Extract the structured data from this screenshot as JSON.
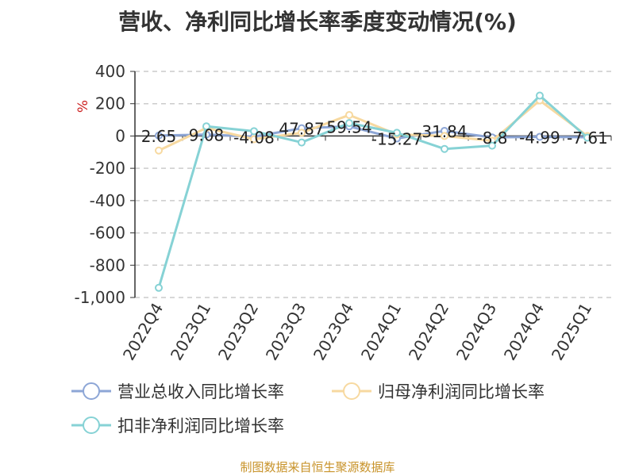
{
  "title": "营收、净利同比增长率季度变动情况(%)",
  "source": "制图数据来自恒生聚源数据库",
  "y_unit": "%",
  "chart_data": {
    "type": "line",
    "categories": [
      "2022Q4",
      "2023Q1",
      "2023Q2",
      "2023Q3",
      "2023Q4",
      "2024Q1",
      "2024Q2",
      "2024Q3",
      "2024Q4",
      "2025Q1"
    ],
    "ylim": [
      -1000,
      400
    ],
    "yticks": [
      400,
      200,
      0,
      -200,
      -400,
      -600,
      -800,
      -1000
    ],
    "ytick_labels": [
      "400",
      "200",
      "0",
      "-200",
      "-400",
      "-600",
      "-800",
      "-1,000"
    ],
    "grid": true,
    "legend_position": "bottom",
    "series": [
      {
        "name": "营业总收入同比增长率",
        "color": "#8da6d6",
        "values": [
          2.65,
          9.08,
          -4.08,
          47.87,
          59.54,
          -15.27,
          31.84,
          -8.8,
          -4.99,
          -7.61
        ],
        "labels": [
          "2.65",
          "9.08",
          "-4.08",
          "47.87",
          "59.54",
          "-15.27",
          "31.84",
          "-8.8",
          "-4.99",
          "-7.61"
        ]
      },
      {
        "name": "归母净利润同比增长率",
        "color": "#f7d9a0",
        "values": [
          -90,
          50,
          -20,
          20,
          130,
          10,
          0,
          -30,
          220,
          0
        ]
      },
      {
        "name": "扣非净利润同比增长率",
        "color": "#86d2d5",
        "values": [
          -940,
          60,
          30,
          -40,
          80,
          20,
          -80,
          -60,
          250,
          -10
        ]
      }
    ]
  }
}
